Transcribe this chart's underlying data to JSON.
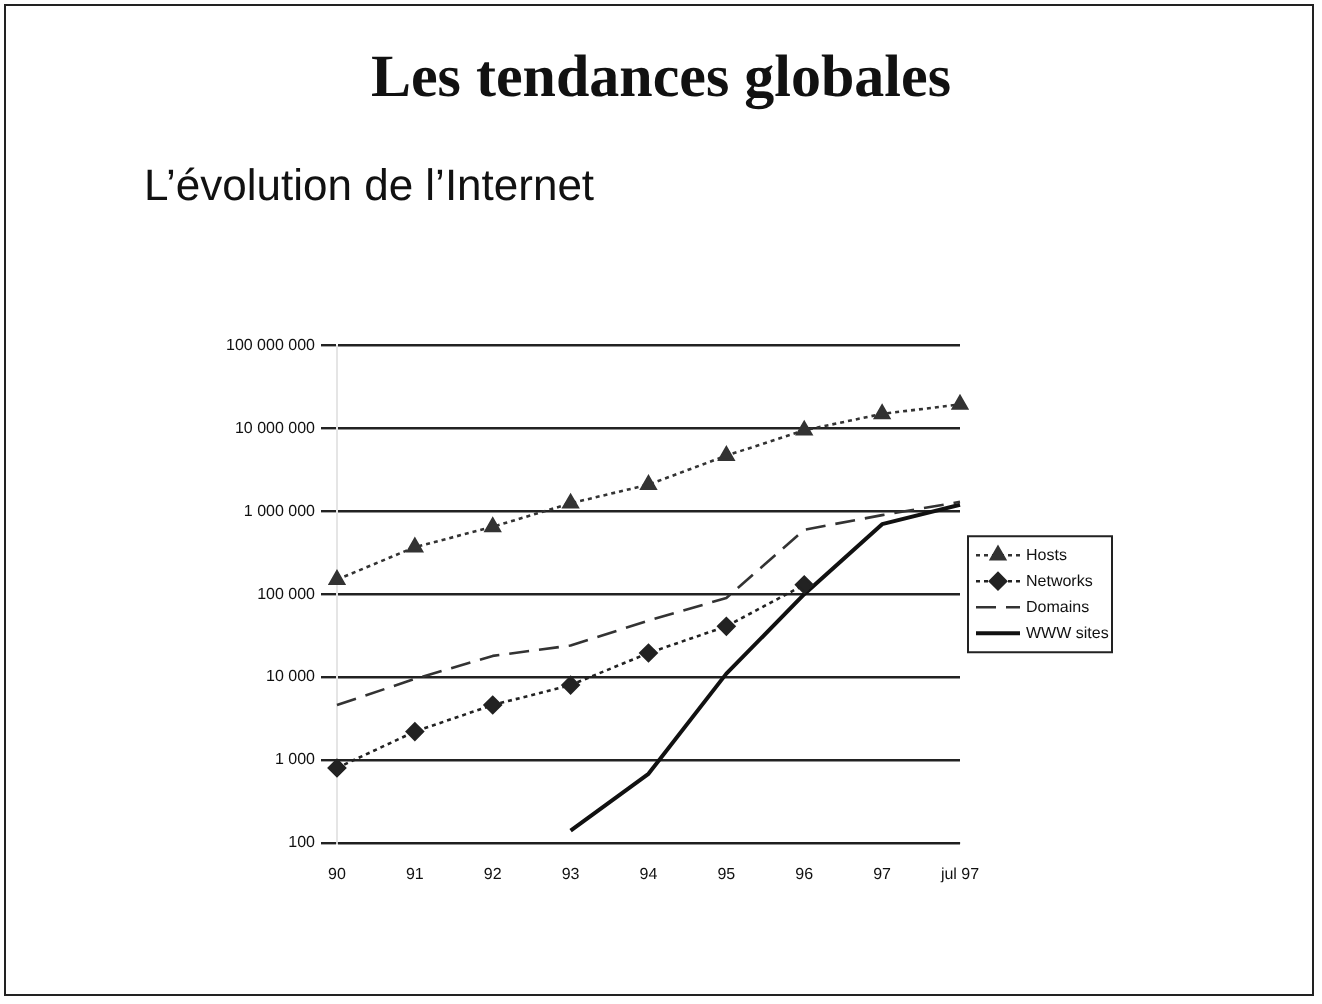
{
  "chart_data": {
    "type": "line",
    "title": "Les tendances globales",
    "subtitle": "L’évolution de l’Internet",
    "categories": [
      "90",
      "91",
      "92",
      "93",
      "94",
      "95",
      "96",
      "97",
      "jul 97"
    ],
    "series": [
      {
        "name": "Hosts",
        "color": "#333333",
        "marker": "triangle",
        "line_style": "dotted",
        "values": [
          150000,
          370000,
          650000,
          1250000,
          2100000,
          4700000,
          9500000,
          15000000,
          19500000
        ]
      },
      {
        "name": "Networks",
        "color": "#222222",
        "marker": "diamond",
        "line_style": "dotted",
        "values": [
          800,
          2200,
          4600,
          8000,
          19500,
          41000,
          130000,
          null,
          null
        ]
      },
      {
        "name": "Domains",
        "color": "#333333",
        "marker": "none",
        "line_style": "dashed",
        "values": [
          4600,
          9500,
          18000,
          24000,
          48000,
          90000,
          600000,
          900000,
          1300000
        ]
      },
      {
        "name": "WWW sites",
        "color": "#111111",
        "marker": "none",
        "line_style": "solid",
        "values": [
          null,
          null,
          null,
          140,
          680,
          11000,
          100000,
          700000,
          1200000
        ]
      }
    ],
    "log": "y",
    "ylim": [
      100,
      100000000
    ],
    "yticks": [
      {
        "value": 100,
        "label": "100"
      },
      {
        "value": 1000,
        "label": "1 000"
      },
      {
        "value": 10000,
        "label": "10 000"
      },
      {
        "value": 100000,
        "label": "100 000"
      },
      {
        "value": 1000000,
        "label": "1 000 000"
      },
      {
        "value": 10000000,
        "label": "10 000 000"
      },
      {
        "value": 100000000,
        "label": "100 000 000"
      }
    ],
    "grid": "y",
    "legend": "right"
  }
}
